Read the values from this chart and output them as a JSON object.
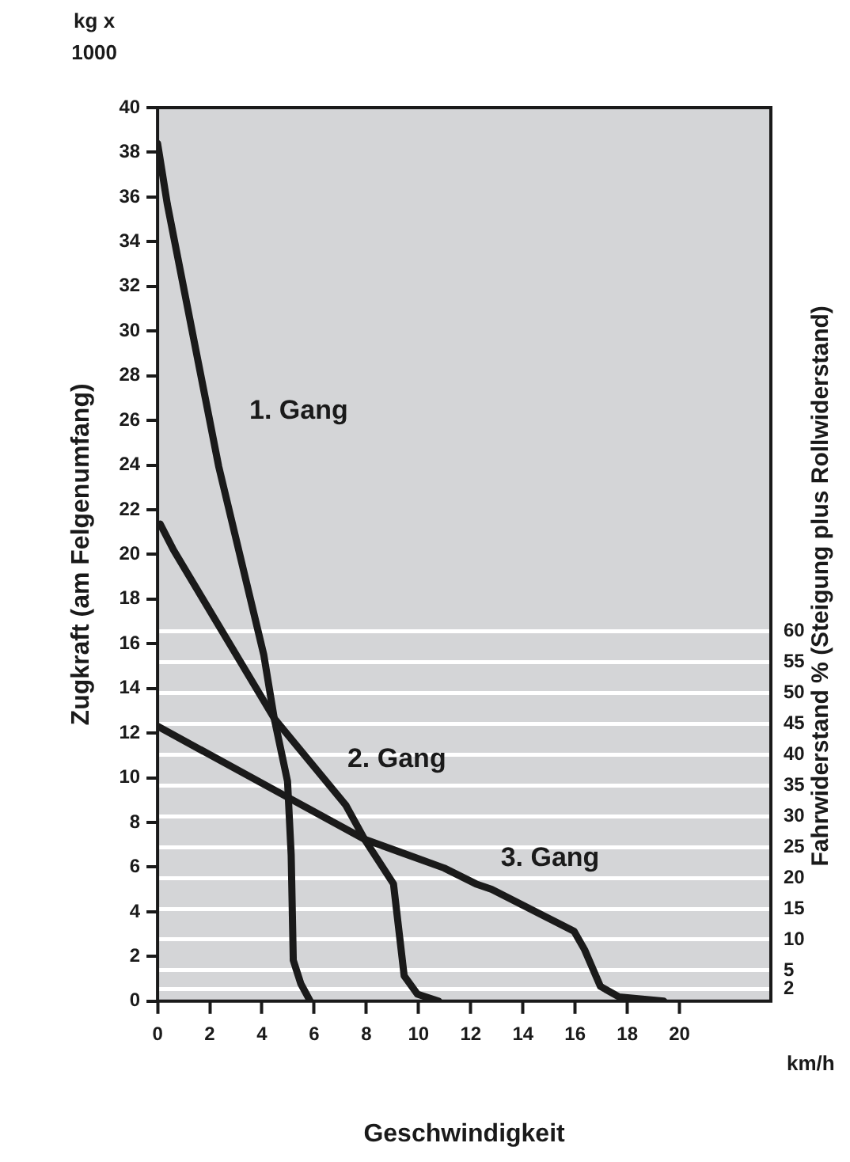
{
  "chart_data": {
    "type": "line",
    "xlabel": "Geschwindigkeit",
    "ylabel": "Zugkraft (am Felgenumfang)",
    "y2label": "Fahrwiderstand % (Steigung plus Rollwiderstand)",
    "annotations": [
      "kg x 1000",
      "km/h"
    ],
    "series": [
      {
        "name": "1. Gang",
        "color": "#1a1a1a",
        "x": [
          0,
          0.37,
          2.34,
          4.07,
          4.47,
          4.98,
          5.12,
          5.2,
          5.49,
          5.85
        ],
        "values": [
          38.4,
          35.7,
          23.95,
          15.5,
          12.66,
          9.84,
          6.54,
          1.83,
          0.78,
          0
        ]
      },
      {
        "name": "2. Gang",
        "color": "#1a1a1a",
        "x": [
          0.1,
          0.61,
          4.47,
          7.21,
          7.93,
          9.04,
          9.45,
          9.96,
          10.77
        ],
        "values": [
          21.36,
          20.2,
          12.66,
          8.78,
          7.25,
          5.25,
          1.13,
          0.31,
          0
        ]
      },
      {
        "name": "3. Gang",
        "color": "#1a1a1a",
        "x": [
          0,
          4.98,
          7.93,
          10.98,
          12.2,
          12.8,
          15.96,
          16.36,
          16.97,
          17.68,
          19.4
        ],
        "values": [
          12.31,
          9.13,
          7.25,
          5.96,
          5.25,
          5.01,
          3.13,
          2.31,
          0.66,
          0.19,
          0
        ]
      }
    ],
    "xlim": [
      0,
      23.5
    ],
    "xticks": [
      0,
      2,
      4,
      6,
      8,
      10,
      12,
      14,
      16,
      18,
      20
    ],
    "ylim": [
      0,
      40
    ],
    "yticks": [
      0,
      2,
      4,
      6,
      8,
      10,
      12,
      14,
      16,
      18,
      20,
      22,
      24,
      26,
      28,
      30,
      32,
      34,
      36,
      38,
      40
    ],
    "y2lim": [
      0,
      145
    ],
    "y2ticks": [
      2,
      5,
      10,
      15,
      20,
      25,
      30,
      35,
      40,
      45,
      50,
      55,
      60
    ],
    "grid": "y",
    "legend": false,
    "marker": "none",
    "line_style": "solid"
  }
}
